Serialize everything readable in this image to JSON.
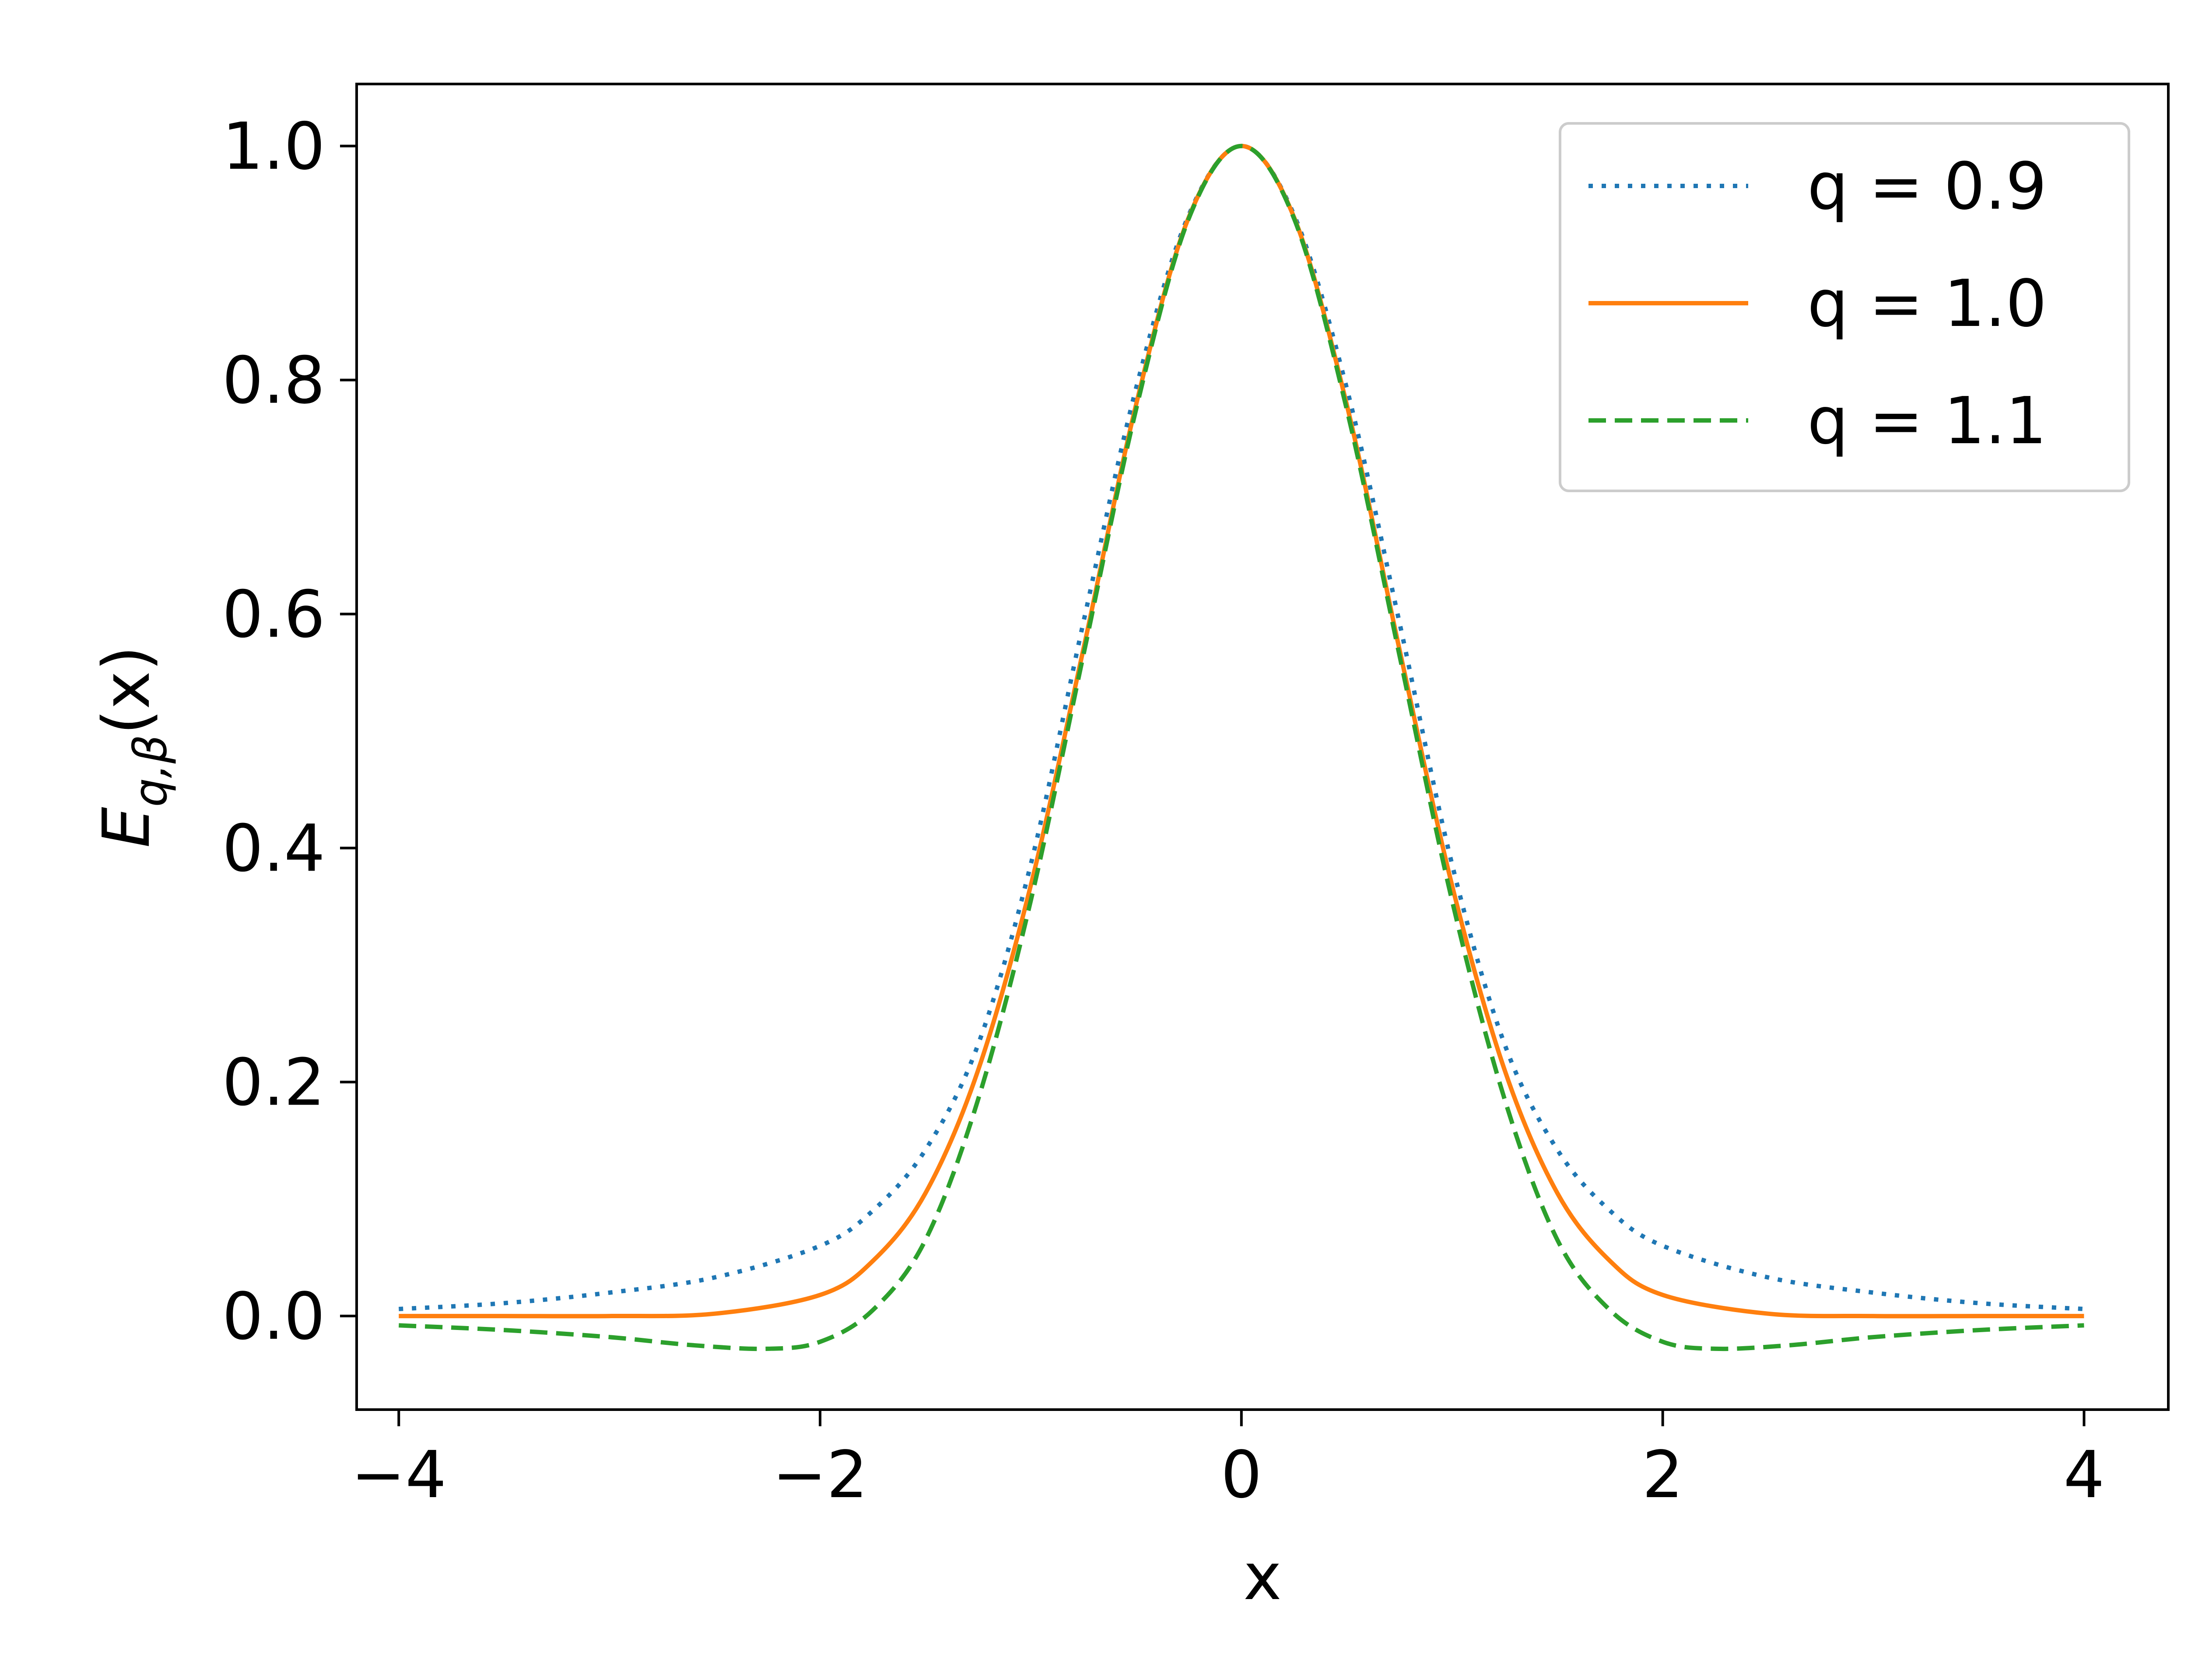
{
  "chart_data": {
    "type": "line",
    "title": "",
    "xlabel": "x",
    "ylabel": "E",
    "ylabel_subscript": "q,β",
    "ylabel_suffix": "(x)",
    "xlim": [
      -4.2,
      4.4
    ],
    "ylim": [
      -0.08,
      1.053
    ],
    "xticks": [
      -4,
      -2,
      0,
      2,
      4
    ],
    "xtick_labels": [
      "−4",
      "−2",
      "0",
      "2",
      "4"
    ],
    "yticks": [
      0.0,
      0.2,
      0.4,
      0.6,
      0.8,
      1.0
    ],
    "ytick_labels": [
      "0.0",
      "0.2",
      "0.4",
      "0.6",
      "0.8",
      "1.0"
    ],
    "grid": false,
    "legend_position": "top-right",
    "series": [
      {
        "name": "q = 0.9",
        "color": "#1f77b4",
        "style": "dotted",
        "x": [
          -4.0,
          -3.5,
          -3.0,
          -2.5,
          -2.0,
          -1.75,
          -1.5,
          -1.25,
          -1.0,
          -0.75,
          -0.5,
          -0.25,
          0.0,
          0.25,
          0.5,
          0.75,
          1.0,
          1.25,
          1.5,
          1.75,
          2.0,
          2.5,
          3.0,
          3.5,
          4.0
        ],
        "y": [
          0.006,
          0.011,
          0.02,
          0.033,
          0.06,
          0.09,
          0.142,
          0.232,
          0.386,
          0.593,
          0.793,
          0.941,
          1.0,
          0.941,
          0.793,
          0.593,
          0.386,
          0.232,
          0.142,
          0.09,
          0.06,
          0.033,
          0.02,
          0.011,
          0.006
        ]
      },
      {
        "name": "q = 1.0",
        "color": "#ff7f0e",
        "style": "solid",
        "x": [
          -4.0,
          -3.5,
          -3.0,
          -2.5,
          -2.0,
          -1.75,
          -1.5,
          -1.25,
          -1.0,
          -0.75,
          -0.5,
          -0.25,
          0.0,
          0.25,
          0.5,
          0.75,
          1.0,
          1.25,
          1.5,
          1.75,
          2.0,
          2.5,
          3.0,
          3.5,
          4.0
        ],
        "y": [
          0.0,
          0.0,
          0.0,
          0.002,
          0.018,
          0.047,
          0.105,
          0.21,
          0.368,
          0.57,
          0.779,
          0.939,
          1.0,
          0.939,
          0.779,
          0.57,
          0.368,
          0.21,
          0.105,
          0.047,
          0.018,
          0.002,
          0.0,
          0.0,
          0.0
        ]
      },
      {
        "name": "q = 1.1",
        "color": "#2ca02c",
        "style": "dashed",
        "x": [
          -4.0,
          -3.5,
          -3.0,
          -2.6,
          -2.25,
          -2.0,
          -1.75,
          -1.5,
          -1.25,
          -1.0,
          -0.75,
          -0.5,
          -0.25,
          0.0,
          0.25,
          0.5,
          0.75,
          1.0,
          1.25,
          1.5,
          1.75,
          2.0,
          2.25,
          2.6,
          3.0,
          3.5,
          4.0
        ],
        "y": [
          -0.008,
          -0.012,
          -0.018,
          -0.025,
          -0.028,
          -0.022,
          0.005,
          0.065,
          0.185,
          0.355,
          0.565,
          0.775,
          0.938,
          1.0,
          0.938,
          0.775,
          0.565,
          0.355,
          0.185,
          0.065,
          0.005,
          -0.022,
          -0.028,
          -0.025,
          -0.018,
          -0.012,
          -0.008
        ]
      }
    ]
  }
}
